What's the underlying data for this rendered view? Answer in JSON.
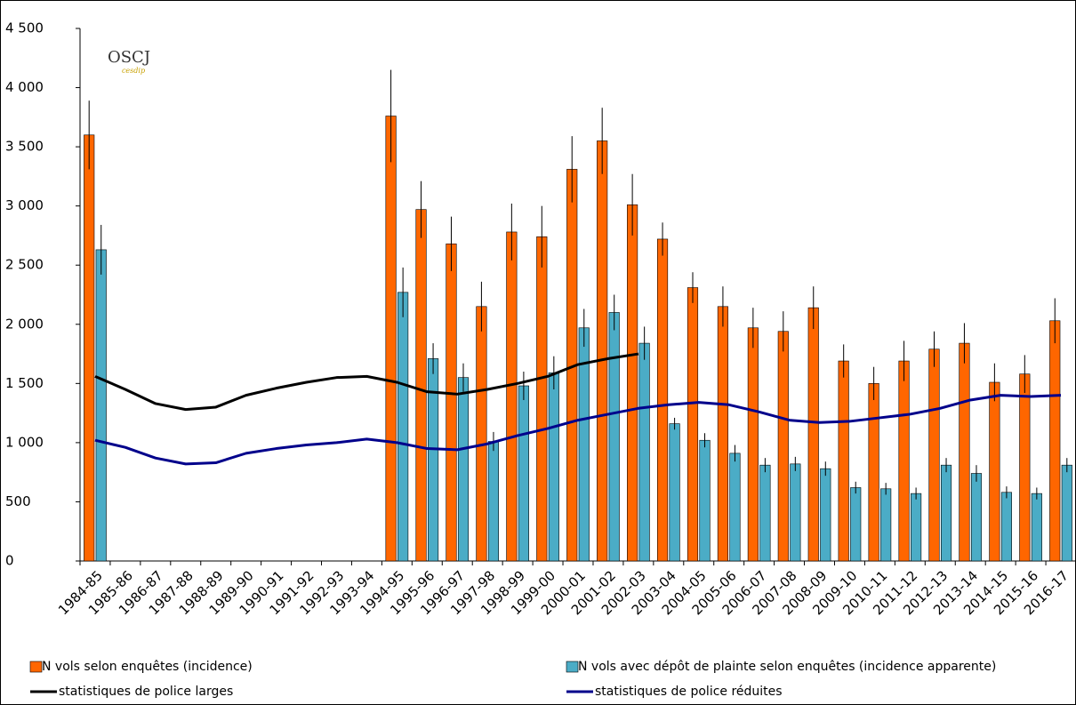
{
  "chart_data": {
    "type": "bar",
    "logo": {
      "title": "OSCJ",
      "subtitle": "cesdip"
    },
    "categories": [
      "1984-85",
      "1985-86",
      "1986-87",
      "1987-88",
      "1988-89",
      "1989-90",
      "1990-91",
      "1991-92",
      "1992-93",
      "1993-94",
      "1994-95",
      "1995-96",
      "1996-97",
      "1997-98",
      "1998-99",
      "1999-00",
      "2000-01",
      "2001-02",
      "2002-03",
      "2003-04",
      "2004-05",
      "2005-06",
      "2006-07",
      "2007-08",
      "2008-09",
      "2009-10",
      "2010-11",
      "2011-12",
      "2012-13",
      "2013-14",
      "2014-15",
      "2015-16",
      "2016-17"
    ],
    "ylim": [
      0,
      4500
    ],
    "yticks": [
      0,
      500,
      {
        "value": 1000,
        "label": "1 000"
      },
      {
        "value": 1500,
        "label": "1 500"
      },
      {
        "value": 2000,
        "label": "2 000"
      },
      {
        "value": 2500,
        "label": "2 500"
      },
      {
        "value": 3000,
        "label": "3 000"
      },
      {
        "value": 3500,
        "label": "3 500"
      },
      {
        "value": 4000,
        "label": "4 000"
      },
      {
        "value": 4500,
        "label": "4 500"
      }
    ],
    "grid": false,
    "series": [
      {
        "name": "N vols selon enquêtes (incidence)",
        "type": "bar",
        "color": "#ff6600",
        "values": [
          3600,
          null,
          null,
          null,
          null,
          null,
          null,
          null,
          null,
          null,
          3760,
          2970,
          2680,
          2150,
          2780,
          2740,
          3310,
          3550,
          3010,
          2720,
          2310,
          2150,
          1970,
          1940,
          2140,
          1690,
          1500,
          1690,
          1790,
          1840,
          1510,
          1580,
          2030
        ],
        "errors": [
          290,
          null,
          null,
          null,
          null,
          null,
          null,
          null,
          null,
          null,
          390,
          240,
          230,
          210,
          240,
          260,
          280,
          280,
          260,
          140,
          130,
          170,
          170,
          170,
          180,
          140,
          140,
          170,
          150,
          170,
          160,
          160,
          190
        ]
      },
      {
        "name": "N vols avec dépôt de plainte selon enquêtes (incidence apparente)",
        "type": "bar",
        "color": "#4bacc6",
        "values": [
          2630,
          null,
          null,
          null,
          null,
          null,
          null,
          null,
          null,
          null,
          2270,
          1710,
          1550,
          1010,
          1480,
          1590,
          1970,
          2100,
          1840,
          1160,
          1020,
          910,
          810,
          820,
          780,
          620,
          610,
          570,
          810,
          740,
          580,
          570,
          810
        ],
        "errors": [
          210,
          null,
          null,
          null,
          null,
          null,
          null,
          null,
          null,
          null,
          210,
          130,
          120,
          80,
          120,
          140,
          160,
          150,
          140,
          50,
          60,
          70,
          60,
          60,
          60,
          50,
          50,
          50,
          60,
          70,
          50,
          50,
          60
        ]
      },
      {
        "name": "statistiques de police larges",
        "type": "line",
        "color": "#000000",
        "values": [
          1560,
          1450,
          1330,
          1280,
          1300,
          1400,
          1460,
          1510,
          1550,
          1560,
          1510,
          1430,
          1410,
          1450,
          1500,
          1560,
          1660,
          1710,
          1750,
          null,
          null,
          null,
          null,
          null,
          null,
          null,
          null,
          null,
          null,
          null,
          null,
          null,
          null
        ]
      },
      {
        "name": "statistiques de police réduites",
        "type": "line",
        "color": "#00008b",
        "values": [
          1020,
          960,
          870,
          820,
          830,
          910,
          950,
          980,
          1000,
          1030,
          1000,
          950,
          940,
          990,
          1060,
          1120,
          1190,
          1240,
          1290,
          1320,
          1340,
          1320,
          1260,
          1190,
          1170,
          1180,
          1210,
          1240,
          1290,
          1360,
          1400,
          1390,
          1400
        ]
      }
    ]
  }
}
